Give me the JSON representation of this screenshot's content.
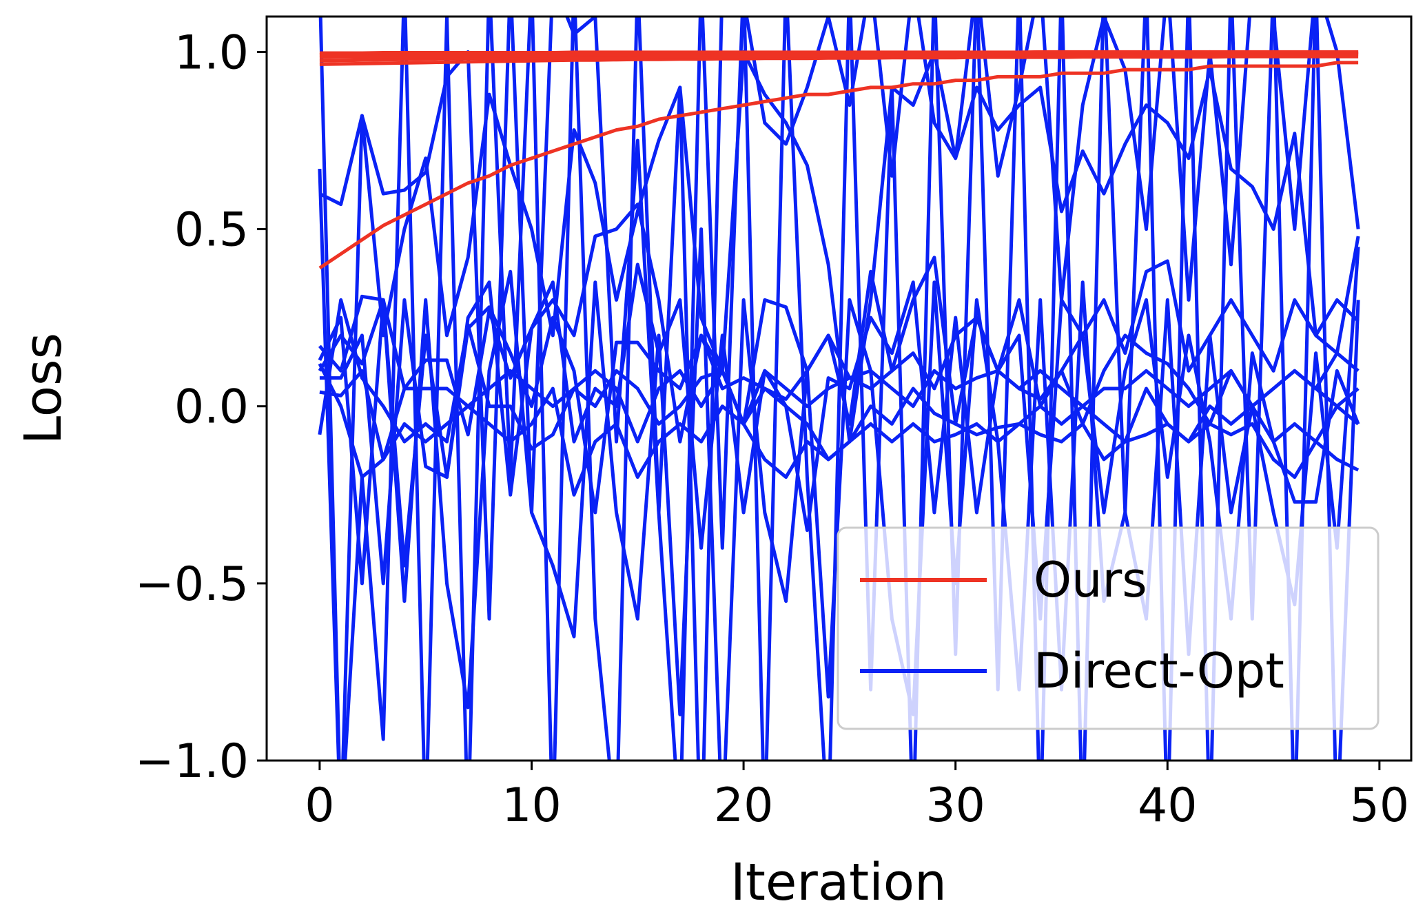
{
  "chart_data": {
    "type": "line",
    "title": "",
    "xlabel": "Iteration",
    "ylabel": "Loss",
    "xlim": [
      -2.5,
      51.5
    ],
    "ylim": [
      -1.0,
      1.1
    ],
    "xticks": [
      0,
      10,
      20,
      30,
      40,
      50
    ],
    "yticks": [
      -1.0,
      -0.5,
      0.0,
      0.5,
      1.0
    ],
    "xtick_labels": [
      "0",
      "10",
      "20",
      "30",
      "40",
      "50"
    ],
    "ytick_labels": [
      "−1.0",
      "−0.5",
      "0.0",
      "0.5",
      "1.0"
    ],
    "grid": false,
    "legend_position": "lower-right",
    "legend": [
      {
        "label": "Ours",
        "color": "#ee3324"
      },
      {
        "label": "Direct-Opt",
        "color": "#0a22f5"
      }
    ],
    "colors": {
      "ours": "#ee3324",
      "direct_opt": "#0a22f5"
    },
    "x": [
      0,
      1,
      2,
      3,
      4,
      5,
      6,
      7,
      8,
      9,
      10,
      11,
      12,
      13,
      14,
      15,
      16,
      17,
      18,
      19,
      20,
      21,
      22,
      23,
      24,
      25,
      26,
      27,
      28,
      29,
      30,
      31,
      32,
      33,
      34,
      35,
      36,
      37,
      38,
      39,
      40,
      41,
      42,
      43,
      44,
      45,
      46,
      47,
      48,
      49
    ],
    "series": [
      {
        "group": "Ours",
        "values": [
          0.39,
          0.43,
          0.47,
          0.51,
          0.54,
          0.57,
          0.6,
          0.63,
          0.65,
          0.68,
          0.7,
          0.72,
          0.74,
          0.76,
          0.78,
          0.79,
          0.81,
          0.82,
          0.83,
          0.84,
          0.85,
          0.86,
          0.87,
          0.88,
          0.88,
          0.89,
          0.9,
          0.9,
          0.91,
          0.91,
          0.92,
          0.92,
          0.93,
          0.93,
          0.93,
          0.94,
          0.94,
          0.94,
          0.95,
          0.95,
          0.95,
          0.95,
          0.96,
          0.96,
          0.96,
          0.96,
          0.96,
          0.96,
          0.97,
          0.97
        ]
      },
      {
        "group": "Ours",
        "values": [
          0.965,
          0.966,
          0.967,
          0.968,
          0.969,
          0.97,
          0.971,
          0.972,
          0.973,
          0.974,
          0.975,
          0.976,
          0.977,
          0.977,
          0.978,
          0.979,
          0.979,
          0.98,
          0.98,
          0.981,
          0.981,
          0.982,
          0.982,
          0.982,
          0.983,
          0.983,
          0.983,
          0.984,
          0.984,
          0.984,
          0.984,
          0.985,
          0.985,
          0.985,
          0.985,
          0.985,
          0.986,
          0.986,
          0.986,
          0.986,
          0.986,
          0.986,
          0.986,
          0.987,
          0.987,
          0.987,
          0.987,
          0.987,
          0.987,
          0.987
        ]
      },
      {
        "group": "Ours",
        "values": [
          0.975,
          0.976,
          0.977,
          0.978,
          0.979,
          0.98,
          0.981,
          0.982,
          0.982,
          0.983,
          0.984,
          0.984,
          0.985,
          0.985,
          0.986,
          0.986,
          0.987,
          0.987,
          0.987,
          0.988,
          0.988,
          0.988,
          0.989,
          0.989,
          0.989,
          0.989,
          0.99,
          0.99,
          0.99,
          0.99,
          0.99,
          0.991,
          0.991,
          0.991,
          0.991,
          0.991,
          0.991,
          0.991,
          0.992,
          0.992,
          0.992,
          0.992,
          0.992,
          0.992,
          0.992,
          0.992,
          0.992,
          0.992,
          0.993,
          0.993
        ]
      },
      {
        "group": "Ours",
        "values": [
          0.985,
          0.986,
          0.986,
          0.987,
          0.987,
          0.988,
          0.988,
          0.989,
          0.989,
          0.99,
          0.99,
          0.99,
          0.991,
          0.991,
          0.991,
          0.992,
          0.992,
          0.992,
          0.992,
          0.993,
          0.993,
          0.993,
          0.993,
          0.993,
          0.994,
          0.994,
          0.994,
          0.994,
          0.994,
          0.994,
          0.994,
          0.995,
          0.995,
          0.995,
          0.995,
          0.995,
          0.995,
          0.995,
          0.995,
          0.995,
          0.995,
          0.996,
          0.996,
          0.996,
          0.996,
          0.996,
          0.996,
          0.996,
          0.996,
          0.996
        ]
      },
      {
        "group": "Ours",
        "values": [
          0.992,
          0.993,
          0.993,
          0.993,
          0.994,
          0.994,
          0.994,
          0.994,
          0.995,
          0.995,
          0.995,
          0.995,
          0.995,
          0.996,
          0.996,
          0.996,
          0.996,
          0.996,
          0.996,
          0.997,
          0.997,
          0.997,
          0.997,
          0.997,
          0.997,
          0.997,
          0.997,
          0.997,
          0.998,
          0.998,
          0.998,
          0.998,
          0.998,
          0.998,
          0.998,
          0.998,
          0.998,
          0.998,
          0.998,
          0.998,
          0.998,
          0.998,
          0.998,
          0.999,
          0.999,
          0.999,
          0.999,
          0.999,
          0.999,
          0.999
        ]
      },
      {
        "group": "Ours",
        "values": [
          0.997,
          0.997,
          0.997,
          0.998,
          0.998,
          0.998,
          0.998,
          0.998,
          0.998,
          0.998,
          0.998,
          0.998,
          0.999,
          0.999,
          0.999,
          0.999,
          0.999,
          0.999,
          0.999,
          0.999,
          0.999,
          0.999,
          0.999,
          0.999,
          0.999,
          0.999,
          0.999,
          0.999,
          0.999,
          0.999,
          0.999,
          0.999,
          0.999,
          0.999,
          1.0,
          1.0,
          1.0,
          1.0,
          1.0,
          1.0,
          1.0,
          1.0,
          1.0,
          1.0,
          1.0,
          1.0,
          1.0,
          1.0,
          1.0,
          1.0
        ]
      },
      {
        "group": "Direct-Opt",
        "values": [
          0.67,
          -1.2,
          0.82,
          0.6,
          0.61,
          0.66,
          0.93,
          1.0,
          -0.6,
          1.2,
          -0.3,
          1.2,
          1.05,
          1.1,
          -0.1,
          0.75,
          -0.3,
          0.9,
          -1.3,
          1.2,
          1.15,
          0.8,
          0.74,
          0.9,
          1.1,
          0.85,
          1.2,
          0.65,
          1.2,
          0.8,
          0.7,
          1.2,
          0.65,
          0.9,
          1.2,
          0.3,
          0.85,
          1.1,
          0.95,
          0.5,
          1.2,
          0.3,
          1.0,
          0.4,
          1.2,
          1.1,
          0.5,
          1.2,
          1.0,
          0.5
        ]
      },
      {
        "group": "Direct-Opt",
        "values": [
          0.6,
          0.57,
          0.82,
          0.2,
          0.5,
          0.7,
          0.2,
          0.42,
          0.88,
          0.68,
          0.5,
          0.2,
          0.78,
          0.63,
          0.3,
          0.55,
          0.75,
          0.9,
          0.25,
          0.1,
          1.0,
          0.88,
          0.8,
          0.68,
          0.4,
          -0.1,
          0.3,
          0.9,
          0.85,
          1.0,
          0.7,
          0.9,
          0.78,
          0.85,
          0.9,
          0.55,
          0.72,
          0.6,
          0.74,
          0.85,
          0.8,
          0.7,
          0.95,
          0.67,
          0.62,
          0.5,
          0.77,
          0.2,
          0.15,
          0.48
        ]
      },
      {
        "group": "Direct-Opt",
        "values": [
          0.17,
          0.1,
          0.31,
          0.3,
          0.05,
          0.13,
          0.13,
          -0.08,
          0.27,
          0.08,
          0.22,
          0.3,
          0.2,
          0.48,
          0.5,
          0.57,
          0.3,
          -0.1,
          0.2,
          0.1,
          -0.05,
          0.3,
          0.28,
          0.1,
          0.2,
          -0.05,
          0.38,
          0.1,
          0.3,
          0.42,
          -0.05,
          0.25,
          0.1,
          0.3,
          0.0,
          0.1,
          0.2,
          0.3,
          0.15,
          0.38,
          0.41,
          0.1,
          0.2,
          0.3,
          0.2,
          0.1,
          0.3,
          0.2,
          0.3,
          0.24
        ]
      },
      {
        "group": "Direct-Opt",
        "values": [
          0.1,
          0.2,
          0.12,
          0.3,
          -0.45,
          0.2,
          -0.2,
          0.22,
          0.28,
          0.15,
          0.0,
          0.25,
          0.1,
          -0.3,
          0.18,
          0.18,
          0.1,
          0.05,
          0.2,
          0.05,
          0.08,
          0.05,
          0.02,
          0.1,
          0.2,
          0.08,
          0.05,
          0.1,
          0.15,
          0.05,
          0.2,
          0.25,
          0.1,
          0.05,
          0.02,
          0.1,
          -0.05,
          0.1,
          0.2,
          0.15,
          0.12,
          0.05,
          -0.05,
          0.1,
          0.0,
          0.05,
          0.1,
          0.05,
          0.15,
          0.1
        ]
      },
      {
        "group": "Direct-Opt",
        "values": [
          0.04,
          0.03,
          0.1,
          -0.15,
          0.05,
          0.05,
          0.05,
          0.0,
          0.05,
          0.1,
          0.05,
          0.0,
          0.05,
          0.1,
          0.05,
          -0.1,
          0.05,
          0.1,
          0.0,
          0.1,
          -0.05,
          0.1,
          0.05,
          0.0,
          0.05,
          0.08,
          0.1,
          0.05,
          0.0,
          0.1,
          0.05,
          0.08,
          0.1,
          0.05,
          0.1,
          0.05,
          0.0,
          0.05,
          0.05,
          0.1,
          0.05,
          0.0,
          0.05,
          0.1,
          0.0,
          0.05,
          0.1,
          0.05,
          0.0,
          0.05
        ]
      },
      {
        "group": "Direct-Opt",
        "values": [
          -0.08,
          0.3,
          0.08,
          0.0,
          -0.1,
          -0.05,
          -0.1,
          0.23,
          0.0,
          0.0,
          -0.12,
          -0.08,
          0.05,
          0.0,
          0.1,
          0.05,
          -0.05,
          0.0,
          0.08,
          0.1,
          -0.05,
          0.05,
          0.0,
          -0.05,
          -0.15,
          -0.1,
          0.0,
          -0.05,
          0.05,
          -0.02,
          -0.05,
          -0.08,
          -0.06,
          -0.05,
          0.0,
          -0.05,
          0.0,
          -0.05,
          -0.1,
          0.05,
          -0.05,
          -0.1,
          0.0,
          -0.05,
          0.0,
          -0.1,
          -0.05,
          -0.1,
          0.0,
          -0.05
        ]
      },
      {
        "group": "Direct-Opt",
        "values": [
          0.12,
          0.0,
          -0.2,
          -0.15,
          -0.05,
          -0.1,
          -0.05,
          0.0,
          -0.05,
          -0.1,
          -0.05,
          0.05,
          -0.25,
          -0.1,
          -0.05,
          -0.2,
          -0.1,
          -0.05,
          -0.1,
          0.0,
          -0.05,
          -0.15,
          -0.2,
          -0.1,
          -0.15,
          -0.1,
          -0.05,
          -0.1,
          -0.05,
          -0.1,
          -0.08,
          -0.05,
          -0.1,
          -0.05,
          -0.08,
          -0.1,
          -0.05,
          -0.15,
          -0.1,
          -0.08,
          -0.05,
          -0.1,
          -0.05,
          -0.08,
          -0.05,
          -0.15,
          -0.2,
          -0.1,
          -0.15,
          -0.18
        ]
      },
      {
        "group": "Direct-Opt",
        "values": [
          0.08,
          0.08,
          0.2,
          -0.5,
          0.3,
          -0.17,
          -0.2,
          0.25,
          0.35,
          -0.25,
          0.22,
          0.35,
          -0.1,
          0.05,
          0.0,
          0.4,
          0.15,
          0.3,
          -0.4,
          0.2,
          -0.3,
          0.1,
          0.0,
          -0.35,
          0.08,
          0.05,
          0.25,
          0.15,
          0.35,
          -0.3,
          0.25,
          -0.3,
          0.1,
          0.2,
          -0.6,
          0.3,
          0.2,
          -0.3,
          0.1,
          0.3,
          -0.2,
          0.2,
          -0.1,
          -0.6,
          0.15,
          -0.1,
          -0.27,
          -0.27,
          0.1,
          -0.05
        ]
      },
      {
        "group": "Direct-Opt",
        "values": [
          0.13,
          0.25,
          -0.5,
          0.3,
          -0.55,
          0.3,
          -0.5,
          -0.85,
          0.1,
          0.38,
          -0.3,
          -0.45,
          -0.65,
          0.35,
          -0.3,
          -0.6,
          0.2,
          -0.87,
          0.5,
          -1.2,
          0.3,
          -0.3,
          -0.55,
          0.1,
          -0.82,
          0.3,
          0.1,
          -0.6,
          -0.87,
          0.35,
          -0.5,
          0.3,
          -0.1,
          -0.8,
          0.3,
          -0.8,
          0.35,
          -0.55,
          -0.3,
          -0.6,
          0.3,
          -0.7,
          0.2,
          -0.3,
          0.0,
          -0.3,
          -0.56,
          0.15,
          -0.4,
          0.45
        ]
      },
      {
        "group": "Direct-Opt",
        "values": [
          1.2,
          -1.2,
          -0.2,
          -0.94,
          1.2,
          -1.2,
          1.1,
          -1.2,
          1.2,
          -0.2,
          1.2,
          -1.2,
          1.2,
          -0.6,
          -1.2,
          1.2,
          -0.3,
          -1.2,
          1.2,
          -0.4,
          1.2,
          -1.2,
          1.2,
          -0.2,
          -1.2,
          1.2,
          -0.8,
          0.9,
          -1.2,
          1.2,
          -0.7,
          1.2,
          -0.8,
          1.2,
          -1.2,
          1.2,
          -1.2,
          1.2,
          -0.3,
          1.2,
          -1.2,
          1.2,
          -1.2,
          1.2,
          -0.6,
          1.2,
          -1.2,
          1.2,
          -1.2,
          0.3
        ]
      }
    ]
  }
}
